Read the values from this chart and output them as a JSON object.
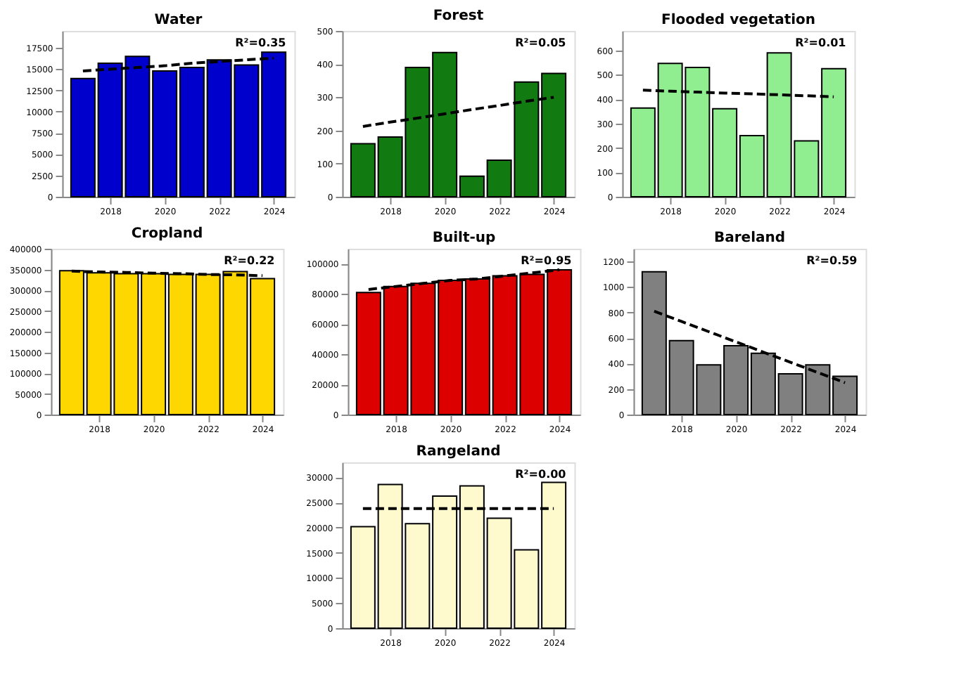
{
  "chart_data": [
    {
      "type": "bar",
      "title": "Water",
      "x": [
        2017,
        2018,
        2019,
        2020,
        2021,
        2022,
        2023,
        2024
      ],
      "xlim": [
        2016.5,
        2024.5
      ],
      "xticks": [
        2018,
        2020,
        2022,
        2024
      ],
      "ylim": [
        0,
        19500
      ],
      "yticks": [
        0,
        2500,
        5000,
        7500,
        10000,
        12500,
        15000,
        17500
      ],
      "grid": false,
      "annotations": [
        "R²=0.35"
      ],
      "series": [
        {
          "color": "#0000cc",
          "values": [
            13900,
            15700,
            16500,
            14800,
            15200,
            16100,
            15500,
            17000
          ]
        },
        {
          "type": "line",
          "values": [
            14800,
            15000,
            15200,
            15400,
            15700,
            15900,
            16100,
            16300
          ],
          "color": "#000000",
          "line_style": "dashed"
        }
      ]
    },
    {
      "type": "bar",
      "title": "Forest",
      "x": [
        2017,
        2018,
        2019,
        2020,
        2021,
        2022,
        2023,
        2024
      ],
      "xlim": [
        2016.5,
        2024.5
      ],
      "xticks": [
        2018,
        2020,
        2022,
        2024
      ],
      "ylim": [
        0,
        500
      ],
      "yticks": [
        0,
        100,
        200,
        300,
        400,
        500
      ],
      "grid": false,
      "annotations": [
        "R²=0.05"
      ],
      "series": [
        {
          "color": "#117a11",
          "values": [
            160,
            180,
            390,
            435,
            62,
            110,
            346,
            372
          ]
        },
        {
          "type": "line",
          "values": [
            212,
            225,
            237,
            250,
            263,
            275,
            288,
            300
          ],
          "color": "#000000",
          "line_style": "dashed"
        }
      ]
    },
    {
      "type": "bar",
      "title": "Flooded vegetation",
      "x": [
        2017,
        2018,
        2019,
        2020,
        2021,
        2022,
        2023,
        2024
      ],
      "xlim": [
        2016.5,
        2024.5
      ],
      "xticks": [
        2018,
        2020,
        2022,
        2024
      ],
      "ylim": [
        0,
        680
      ],
      "yticks": [
        0,
        100,
        200,
        300,
        400,
        500,
        600
      ],
      "grid": false,
      "annotations": [
        "R²=0.01"
      ],
      "series": [
        {
          "color": "#90ee90",
          "values": [
            364,
            547,
            530,
            361,
            251,
            590,
            229,
            525
          ]
        },
        {
          "type": "line",
          "values": [
            437,
            433,
            429,
            425,
            422,
            418,
            414,
            410
          ],
          "color": "#000000",
          "line_style": "dashed"
        }
      ]
    },
    {
      "type": "bar",
      "title": "Cropland",
      "x": [
        2017,
        2018,
        2019,
        2020,
        2021,
        2022,
        2023,
        2024
      ],
      "xlim": [
        2016.5,
        2024.5
      ],
      "xticks": [
        2018,
        2020,
        2022,
        2024
      ],
      "ylim": [
        0,
        400000
      ],
      "yticks": [
        0,
        50000,
        100000,
        150000,
        200000,
        250000,
        300000,
        350000,
        400000
      ],
      "grid": false,
      "annotations": [
        "R²=0.22"
      ],
      "series": [
        {
          "color": "#ffd700",
          "values": [
            347000,
            342000,
            340000,
            340000,
            338000,
            338000,
            345000,
            328000
          ]
        },
        {
          "type": "line",
          "values": [
            346000,
            344000,
            343000,
            341000,
            340000,
            338000,
            337000,
            335000
          ],
          "color": "#000000",
          "line_style": "dashed"
        }
      ]
    },
    {
      "type": "bar",
      "title": "Built-up",
      "x": [
        2017,
        2018,
        2019,
        2020,
        2021,
        2022,
        2023,
        2024
      ],
      "xlim": [
        2016.5,
        2024.5
      ],
      "xticks": [
        2018,
        2020,
        2022,
        2024
      ],
      "ylim": [
        0,
        110000
      ],
      "yticks": [
        0,
        20000,
        40000,
        60000,
        80000,
        100000
      ],
      "grid": false,
      "annotations": [
        "R²=0.95"
      ],
      "series": [
        {
          "color": "#dd0000",
          "values": [
            81000,
            85000,
            87000,
            89000,
            90000,
            92000,
            93000,
            96000
          ]
        },
        {
          "type": "line",
          "values": [
            83000,
            85000,
            87000,
            89000,
            90000,
            92000,
            94000,
            96000
          ],
          "color": "#000000",
          "line_style": "dashed"
        }
      ]
    },
    {
      "type": "bar",
      "title": "Bareland",
      "x": [
        2017,
        2018,
        2019,
        2020,
        2021,
        2022,
        2023,
        2024
      ],
      "xlim": [
        2016.5,
        2024.5
      ],
      "xticks": [
        2018,
        2020,
        2022,
        2024
      ],
      "ylim": [
        0,
        1300
      ],
      "yticks": [
        0,
        200,
        400,
        600,
        800,
        1000,
        1200
      ],
      "grid": false,
      "annotations": [
        "R²=0.59"
      ],
      "series": [
        {
          "color": "#808080",
          "values": [
            1120,
            580,
            390,
            540,
            480,
            320,
            390,
            300
          ]
        },
        {
          "type": "line",
          "values": [
            810,
            730,
            650,
            570,
            490,
            410,
            330,
            250
          ],
          "color": "#000000",
          "line_style": "dashed"
        }
      ]
    },
    {
      "type": "bar",
      "title": "Rangeland",
      "x": [
        2017,
        2018,
        2019,
        2020,
        2021,
        2022,
        2023,
        2024
      ],
      "xlim": [
        2016.5,
        2024.5
      ],
      "xticks": [
        2018,
        2020,
        2022,
        2024
      ],
      "ylim": [
        0,
        33000
      ],
      "yticks": [
        0,
        5000,
        10000,
        15000,
        20000,
        25000,
        30000
      ],
      "grid": false,
      "annotations": [
        "R²=0.00"
      ],
      "series": [
        {
          "color": "#fffacd",
          "values": [
            20200,
            28600,
            20800,
            26300,
            28300,
            21900,
            15600,
            29000
          ]
        },
        {
          "type": "line",
          "values": [
            23800,
            23800,
            23800,
            23800,
            23800,
            23800,
            23800,
            23800
          ],
          "color": "#000000",
          "line_style": "dashed"
        }
      ]
    }
  ]
}
